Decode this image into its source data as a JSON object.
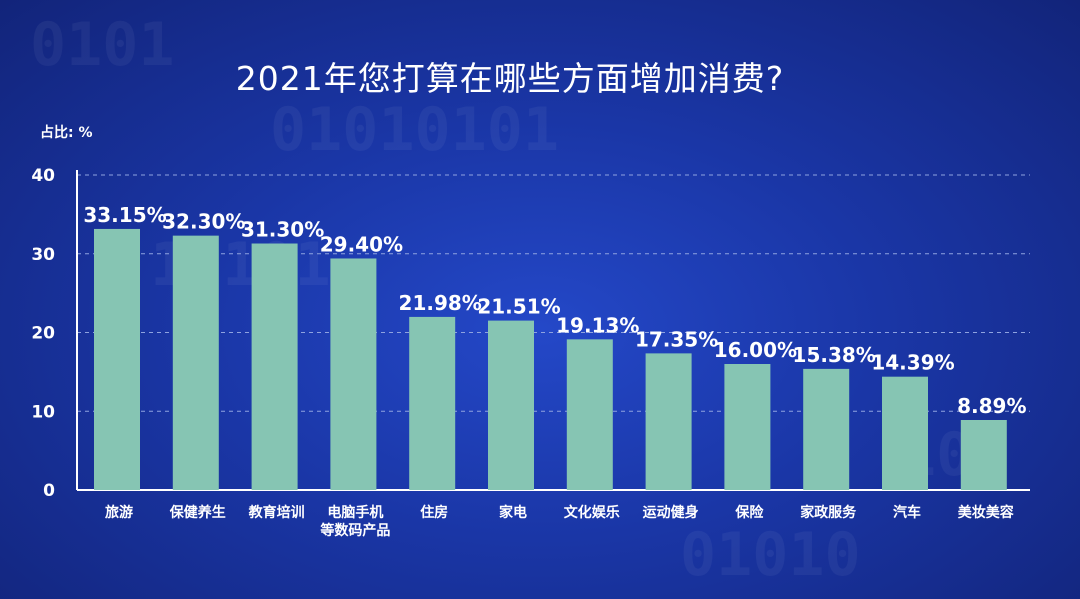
{
  "chart_data": {
    "type": "bar",
    "title": "2021年您打算在哪些方面增加消费?",
    "ylabel": "占比: %",
    "xlabel": "",
    "ylim": [
      0,
      40
    ],
    "yticks": [
      0,
      10,
      20,
      30,
      40
    ],
    "grid": true,
    "categories": [
      [
        "旅游"
      ],
      [
        "保健养生"
      ],
      [
        "教育培训"
      ],
      [
        "电脑手机",
        "等数码产品"
      ],
      [
        "住房"
      ],
      [
        "家电"
      ],
      [
        "文化娱乐"
      ],
      [
        "运动健身"
      ],
      [
        "保险"
      ],
      [
        "家政服务"
      ],
      [
        "汽车"
      ],
      [
        "美妆美容"
      ]
    ],
    "values": [
      33.15,
      32.3,
      31.3,
      29.4,
      21.98,
      21.51,
      19.13,
      17.35,
      16.0,
      15.38,
      14.39,
      8.89
    ],
    "data_labels": [
      "33.15%",
      "32.30%",
      "31.30%",
      "29.40%",
      "21.98%",
      "21.51%",
      "19.13%",
      "17.35%",
      "16.00%",
      "15.38%",
      "14.39%",
      "8.89%"
    ]
  },
  "colors": {
    "bar": "#86c5b3",
    "text": "#ffffff",
    "grid": "#8fa3e0"
  }
}
